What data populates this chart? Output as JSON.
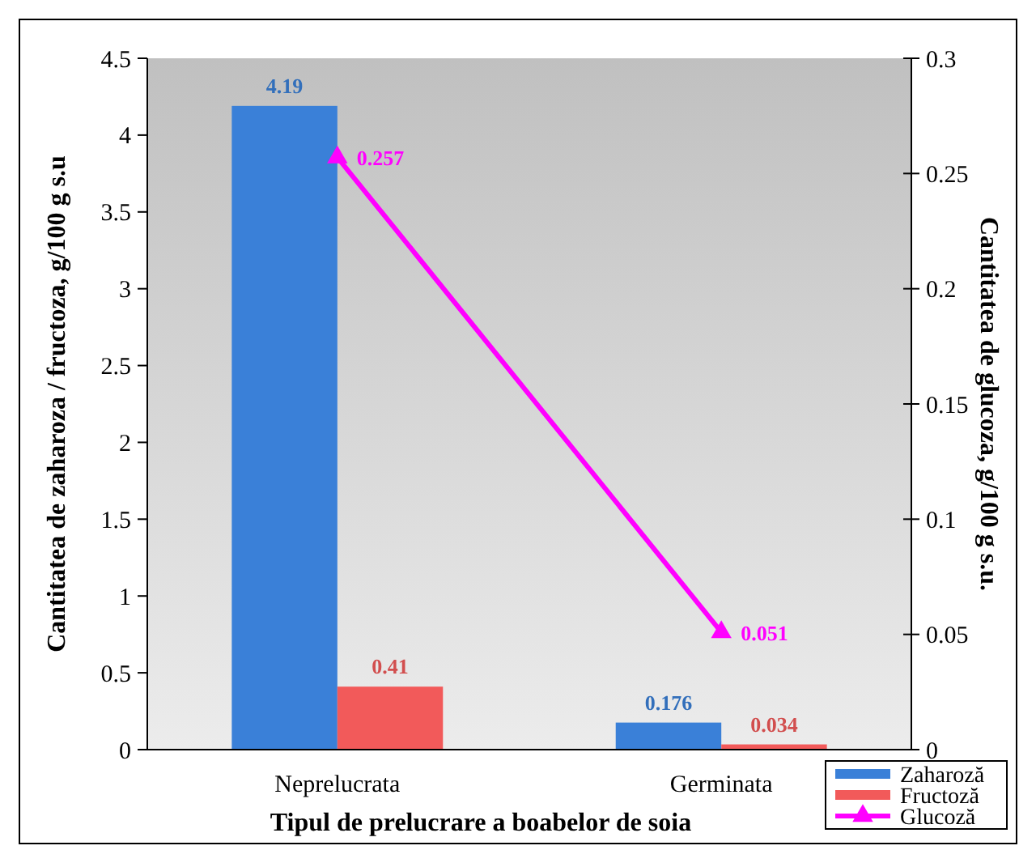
{
  "chart_data": {
    "type": "bar",
    "categories": [
      "Neprelucrata",
      "Germinata"
    ],
    "series": [
      {
        "name": "Zaharoză",
        "color": "#3a80d8",
        "values": [
          4.19,
          0.176
        ]
      },
      {
        "name": "Fructoză",
        "color": "#f25a5a",
        "values": [
          0.41,
          0.034
        ]
      },
      {
        "name": "Glucoză",
        "type": "line",
        "axis": "y2",
        "color": "#ff00ff",
        "values": [
          0.257,
          0.051
        ]
      }
    ],
    "xlabel": "Tipul de prelucrare a boabelor de soia",
    "ylabel": "Cantitatea de zaharoza / fructoza, g/100 g s.u",
    "y2label": "Cantitatea de glucoza, g/100 g s.u.",
    "ylim": [
      0,
      4.5
    ],
    "yticks": [
      0,
      0.5,
      1,
      1.5,
      2,
      2.5,
      3,
      3.5,
      4,
      4.5
    ],
    "y2lim": [
      0,
      0.3
    ],
    "y2ticks": [
      0,
      0.05,
      0.1,
      0.15,
      0.2,
      0.25,
      0.3
    ],
    "marker": "triangle",
    "data_labels": true,
    "legend": "bottom right"
  }
}
